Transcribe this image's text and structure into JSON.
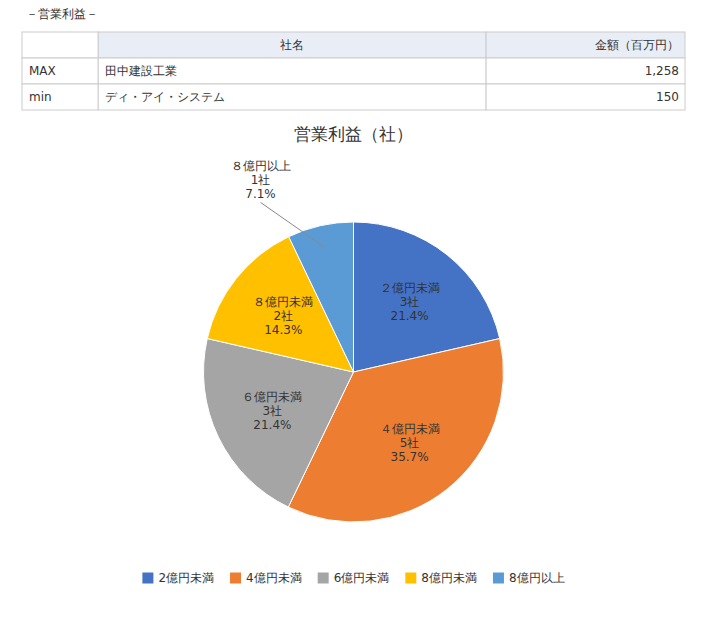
{
  "chart_data": [
    {
      "type": "table",
      "title": "－営業利益－",
      "columns": [
        null,
        "社名",
        "金額（百万円）"
      ],
      "rows": [
        [
          "MAX",
          "田中建設工業",
          {
            "value": 1258,
            "label": "1,258"
          }
        ],
        [
          "min",
          "ディ・アイ・システム",
          150
        ]
      ]
    },
    {
      "type": "pie",
      "title": "営業利益（社）",
      "categories": [
        "２億円未満",
        "４億円未満",
        "６億円未満",
        "８億円未満",
        "８億円以上"
      ],
      "values": [
        21.4,
        35.7,
        21.4,
        14.3,
        7.1
      ],
      "value_labels": [
        "21.4%",
        "35.7%",
        "21.4%",
        "14.3%",
        "7.1%"
      ],
      "counts": [
        {
          "value": 3,
          "label": "3社"
        },
        {
          "value": 5,
          "label": "5社"
        },
        {
          "value": 3,
          "label": "3社"
        },
        {
          "value": 2,
          "label": "2社"
        },
        {
          "value": 1,
          "label": "1社"
        }
      ],
      "colors": [
        "#4472C4",
        "#ED7D31",
        "#A5A5A5",
        "#FFC000",
        "#5B9BD5"
      ],
      "legend_labels": [
        "2億円未満",
        "4億円未満",
        "6億円未満",
        "8億円未満",
        "8億円以上"
      ],
      "legend": "bottom",
      "data_labels": true
    }
  ]
}
